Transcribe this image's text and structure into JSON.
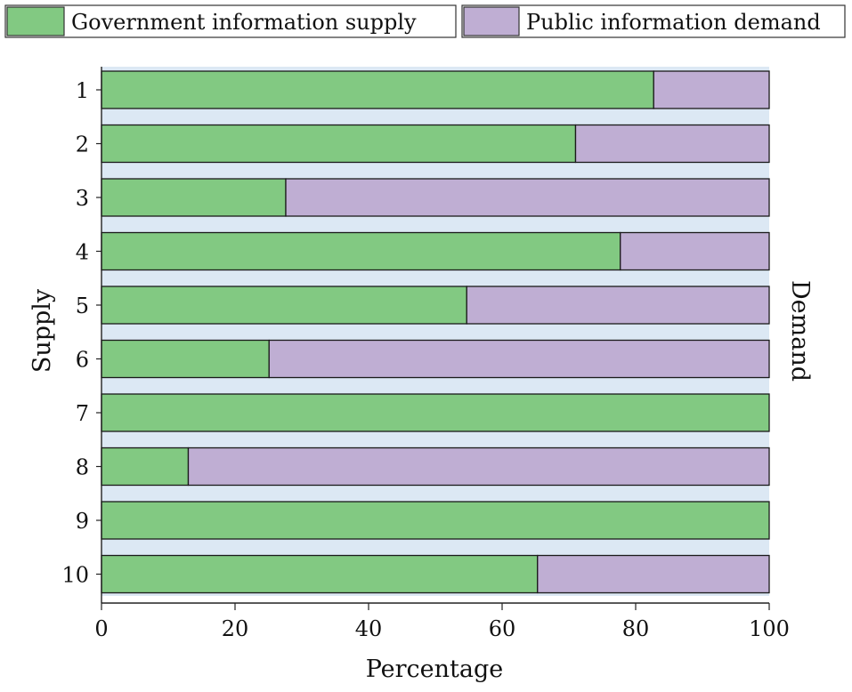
{
  "chart_data": {
    "type": "bar",
    "orientation": "horizontal",
    "stacked": true,
    "title": "",
    "xlabel": "Percentage",
    "ylabel_left": "Supply",
    "ylabel_right": "Demand",
    "xlim": [
      0,
      100
    ],
    "xticks": [
      "0",
      "20",
      "40",
      "60",
      "80",
      "100"
    ],
    "categories": [
      "1",
      "2",
      "3",
      "4",
      "5",
      "6",
      "7",
      "8",
      "9",
      "10"
    ],
    "series": [
      {
        "name": "Government information supply",
        "color": "#82c982",
        "values": [
          82.7,
          71.0,
          27.6,
          77.7,
          54.7,
          25.1,
          100,
          13.0,
          100,
          65.3
        ]
      },
      {
        "name": "Public information demand",
        "color": "#bfaed3",
        "values": [
          17.3,
          29.0,
          72.4,
          22.3,
          45.3,
          74.9,
          0,
          87.0,
          0,
          34.7
        ]
      }
    ],
    "band_color": "#dce8f4",
    "legend_position": "top"
  }
}
